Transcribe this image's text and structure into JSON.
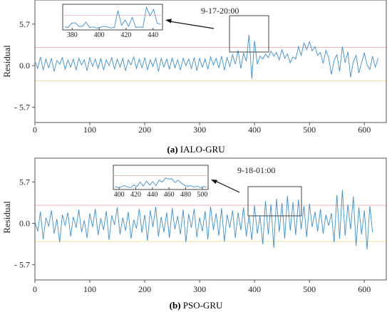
{
  "chart_data": [
    {
      "type": "line",
      "caption_tag": "(a)",
      "caption_text": "IALO-GRU",
      "ylabel": "Residual",
      "xlim": [
        0,
        640
      ],
      "ylim": [
        -7.8,
        9.0
      ],
      "xticks": [
        0,
        100,
        200,
        300,
        400,
        500,
        600
      ],
      "yticks": [
        5.7,
        0.0,
        -5.7
      ],
      "ytick_labels": [
        "5.7",
        "0.0",
        "- 5.7"
      ],
      "threshold_lines": [
        {
          "y": 2.5,
          "color": "#f2b8b8"
        },
        {
          "y": -2.1,
          "color": "#f2dc9c"
        }
      ],
      "annotation": "9-17-20:00",
      "series": [
        {
          "x_start": 0,
          "x_step": 5,
          "color": "#3a8fd0",
          "values": [
            0.6,
            -0.4,
            1.2,
            -0.6,
            0.9,
            -0.3,
            1.0,
            -0.8,
            0.7,
            0.2,
            1.1,
            -0.5,
            0.8,
            -0.2,
            0.9,
            -0.6,
            1.0,
            0.1,
            0.8,
            -0.7,
            1.1,
            -0.1,
            0.9,
            -0.4,
            1.0,
            -0.6,
            0.8,
            0.0,
            1.1,
            -0.5,
            0.9,
            -0.2,
            1.0,
            -0.7,
            0.8,
            0.1,
            1.2,
            -0.4,
            0.9,
            -0.3,
            1.1,
            -0.6,
            0.8,
            -0.1,
            1.0,
            -0.8,
            1.0,
            -0.2,
            0.9,
            -0.5,
            1.1,
            -0.3,
            0.8,
            -0.6,
            1.0,
            0.0,
            0.9,
            -0.4,
            1.1,
            -0.7,
            1.0,
            -0.2,
            0.9,
            -0.5,
            1.2,
            0.1,
            1.0,
            -0.3,
            1.3,
            -0.6,
            1.1,
            -0.1,
            1.5,
            0.2,
            2.1,
            -0.4,
            1.7,
            0.6,
            4.2,
            -1.8,
            3.4,
            0.2,
            1.3,
            0.9,
            1.6,
            1.1,
            2.0,
            1.3,
            1.8,
            0.8,
            2.2,
            1.0,
            1.6,
            0.4,
            1.2,
            0.9,
            2.6,
            1.4,
            3.1,
            2.2,
            3.3,
            2.0,
            2.6,
            1.4,
            1.8,
            0.3,
            2.1,
            1.1,
            -1.2,
            0.7,
            1.5,
            -0.8,
            2.6,
            0.4,
            1.9,
            -1.6,
            0.6,
            1.4,
            -1.0,
            0.4,
            1.7,
            0.1,
            -0.5,
            1.3,
            -0.2,
            1.0
          ]
        }
      ],
      "inset": {
        "xticks": [
          380,
          400,
          420,
          440
        ],
        "series_values": [
          0.3,
          0.2,
          1.0,
          1.1,
          0.4,
          0.4,
          1.2,
          0.2,
          0.3,
          0.1,
          0.2,
          0.4,
          0.3,
          0.1,
          0.2,
          3.4,
          0.6,
          1.6,
          0.4,
          2.1,
          0.2,
          0.3,
          0.2,
          4.0,
          2.4,
          3.6,
          1.0,
          0.8
        ],
        "pointer_label": "9-17-20:00"
      }
    },
    {
      "type": "line",
      "caption_tag": "(b)",
      "caption_text": "PSO-GRU",
      "ylabel": "Residual",
      "xlim": [
        0,
        640
      ],
      "ylim": [
        -7.8,
        9.0
      ],
      "xticks": [
        0,
        100,
        200,
        300,
        400,
        500,
        600
      ],
      "yticks": [
        5.7,
        0.0,
        -5.7
      ],
      "ytick_labels": [
        "5.7",
        "0.0",
        "- 5.7"
      ],
      "threshold_lines": [
        {
          "y": 2.5,
          "color": "#f2b8b8"
        },
        {
          "y": -2.5,
          "color": "#f2dc9c"
        }
      ],
      "annotation": "9-18-01:00",
      "series": [
        {
          "x_start": 0,
          "x_step": 5,
          "color": "#3a8fd0",
          "values": [
            0.2,
            -1.1,
            1.6,
            -2.2,
            0.8,
            -0.4,
            1.8,
            -1.4,
            0.6,
            -2.6,
            1.2,
            -0.3,
            1.5,
            -1.8,
            0.9,
            -0.6,
            1.9,
            -1.2,
            0.4,
            -2.0,
            1.4,
            -0.5,
            2.0,
            -1.6,
            0.7,
            -0.9,
            1.7,
            -2.3,
            1.1,
            -0.2,
            2.2,
            -1.5,
            0.8,
            -1.0,
            1.6,
            -2.1,
            0.5,
            -0.7,
            2.0,
            -1.3,
            1.2,
            -2.4,
            1.8,
            -0.5,
            2.3,
            -1.8,
            0.9,
            -1.2,
            1.5,
            -2.0,
            2.1,
            -0.8,
            1.0,
            -1.5,
            1.9,
            -2.6,
            1.3,
            -0.6,
            2.0,
            -1.9,
            0.8,
            -1.1,
            1.7,
            -2.2,
            2.3,
            -0.9,
            1.4,
            -1.7,
            2.1,
            -2.5,
            1.2,
            -0.6,
            1.8,
            -2.0,
            1.5,
            -0.9,
            2.2,
            -1.8,
            1.1,
            -2.3,
            2.5,
            -1.4,
            1.0,
            -2.9,
            3.1,
            -1.5,
            2.6,
            -3.4,
            3.4,
            -1.2,
            2.8,
            -2.1,
            3.8,
            -1.0,
            2.9,
            -1.6,
            3.3,
            -0.8,
            2.4,
            -1.9,
            2.7,
            -0.5,
            1.6,
            -1.1,
            2.0,
            -1.4,
            1.2,
            -0.3,
            1.4,
            -2.6,
            3.9,
            -2.1,
            4.6,
            -1.7,
            2.6,
            -0.8,
            3.7,
            -3.1,
            2.2,
            -1.5,
            1.8,
            -3.6,
            2.4,
            -1.2
          ]
        }
      ],
      "inset": {
        "xticks": [
          400,
          420,
          440,
          460,
          480,
          500
        ],
        "series_values": [
          0.3,
          0.1,
          0.2,
          0.5,
          0.2,
          0.1,
          0.6,
          0.3,
          1.2,
          0.4,
          1.4,
          0.6,
          1.3,
          0.5,
          1.6,
          1.2,
          2.0,
          1.8,
          1.9,
          1.1,
          1.6,
          1.0,
          0.6,
          0.3,
          0.5,
          0.2,
          0.4,
          0.1,
          0.3,
          0.2
        ],
        "pointer_label": "9-18-01:00"
      }
    }
  ]
}
